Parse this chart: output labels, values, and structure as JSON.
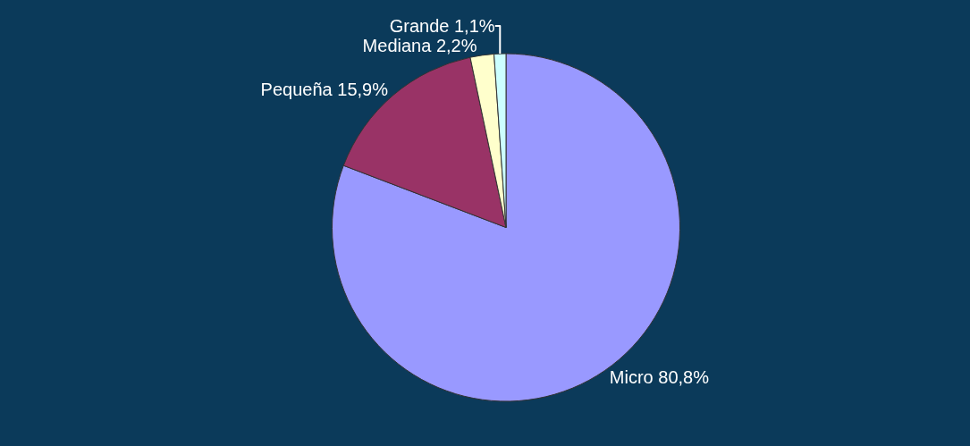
{
  "chart_data": {
    "type": "pie",
    "categories": [
      "Micro",
      "Pequeña",
      "Mediana",
      "Grande"
    ],
    "values": [
      80.8,
      15.9,
      2.2,
      1.1
    ],
    "value_labels": [
      "80,8%",
      "15,9%",
      "2,2%",
      "1,1%"
    ],
    "colors": [
      "#9999ff",
      "#993366",
      "#ffffcc",
      "#ccffff"
    ],
    "legend": false
  }
}
